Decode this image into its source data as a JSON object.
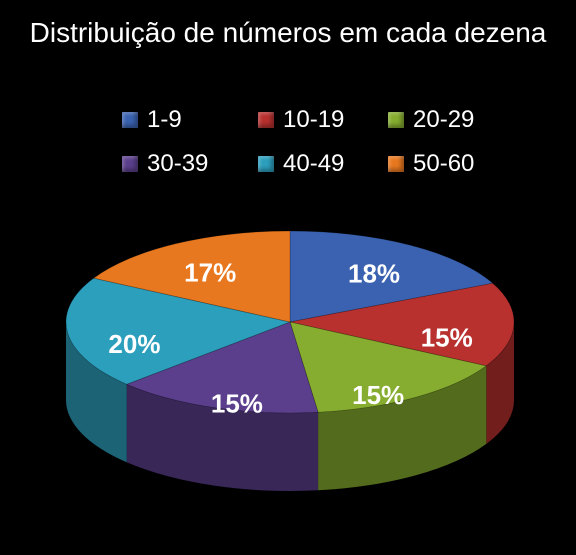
{
  "chart_data": {
    "type": "pie",
    "title": "Distribuição de números em cada dezena",
    "categories": [
      "1-9",
      "10-19",
      "20-29",
      "30-39",
      "40-49",
      "50-60"
    ],
    "values": [
      18,
      15,
      15,
      15,
      20,
      17
    ],
    "labels": [
      "18%",
      "15%",
      "15%",
      "15%",
      "20%",
      "17%"
    ],
    "colors": [
      "#3a62b0",
      "#b8312f",
      "#86ad2f",
      "#5b3f8c",
      "#2c9fbd",
      "#e8781f"
    ],
    "legend_position": "top",
    "style": "3d"
  }
}
